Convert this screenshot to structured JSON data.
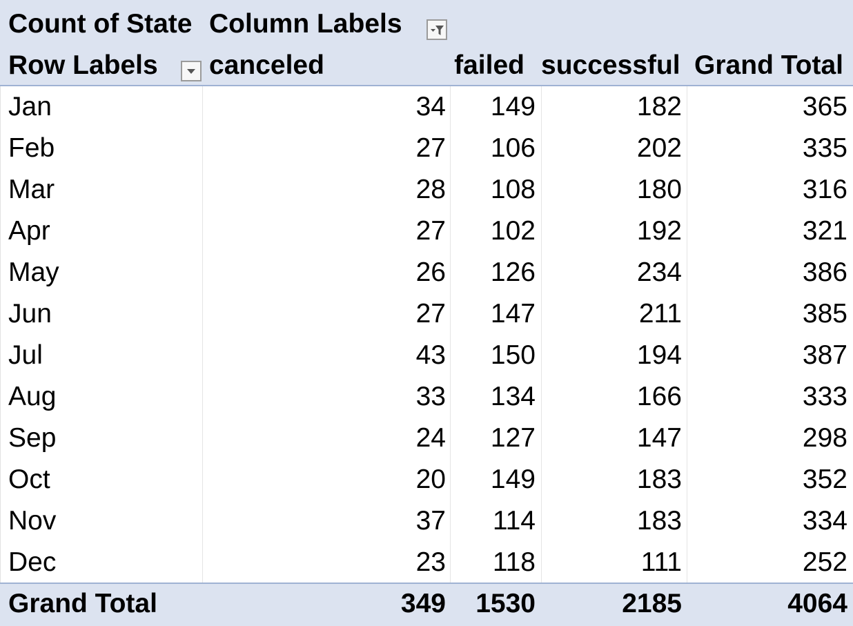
{
  "pivot": {
    "value_field": "Count of State",
    "column_labels": "Column Labels",
    "row_labels": "Row Labels",
    "columns": [
      "canceled",
      "failed",
      "successful",
      "Grand Total"
    ],
    "rows": [
      {
        "label": "Jan",
        "values": [
          "34",
          "149",
          "182",
          "365"
        ]
      },
      {
        "label": "Feb",
        "values": [
          "27",
          "106",
          "202",
          "335"
        ]
      },
      {
        "label": "Mar",
        "values": [
          "28",
          "108",
          "180",
          "316"
        ]
      },
      {
        "label": "Apr",
        "values": [
          "27",
          "102",
          "192",
          "321"
        ]
      },
      {
        "label": "May",
        "values": [
          "26",
          "126",
          "234",
          "386"
        ]
      },
      {
        "label": "Jun",
        "values": [
          "27",
          "147",
          "211",
          "385"
        ]
      },
      {
        "label": "Jul",
        "values": [
          "43",
          "150",
          "194",
          "387"
        ]
      },
      {
        "label": "Aug",
        "values": [
          "33",
          "134",
          "166",
          "333"
        ]
      },
      {
        "label": "Sep",
        "values": [
          "24",
          "127",
          "147",
          "298"
        ]
      },
      {
        "label": "Oct",
        "values": [
          "20",
          "149",
          "183",
          "352"
        ]
      },
      {
        "label": "Nov",
        "values": [
          "37",
          "114",
          "183",
          "334"
        ]
      },
      {
        "label": "Dec",
        "values": [
          "23",
          "118",
          "111",
          "252"
        ]
      }
    ],
    "grand_total": {
      "label": "Grand Total",
      "values": [
        "349",
        "1530",
        "2185",
        "4064"
      ]
    }
  },
  "icons": {
    "column_filter": "filter-active-icon",
    "row_filter": "dropdown-arrow-icon"
  },
  "colors": {
    "header_fill": "#dce3f0",
    "header_border": "#9fb2d3"
  }
}
